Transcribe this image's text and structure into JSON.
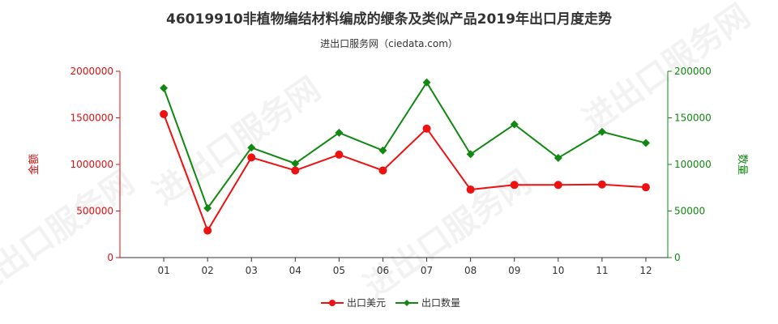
{
  "chart_data": {
    "type": "line",
    "title": "46019910非植物编结材料编成的缏条及类似产品2019年出口月度走势",
    "subtitle": "进出口服务网（ciedata.com）",
    "watermark": "进出口服务网",
    "categories": [
      "01",
      "02",
      "03",
      "04",
      "05",
      "06",
      "07",
      "08",
      "09",
      "10",
      "11",
      "12"
    ],
    "y_left": {
      "label": "金额",
      "range": [
        0,
        2000000
      ],
      "ticks": [
        0,
        500000,
        1000000,
        1500000,
        2000000
      ],
      "tick_labels": [
        "0",
        "500000",
        "1000000",
        "1500000",
        "2000000"
      ],
      "color": "#dd1111"
    },
    "y_right": {
      "label": "数量",
      "range": [
        0,
        200000
      ],
      "ticks": [
        0,
        50000,
        100000,
        150000,
        200000
      ],
      "tick_labels": [
        "0",
        "50000",
        "100000",
        "150000",
        "200000"
      ],
      "color": "#118811"
    },
    "series": [
      {
        "name": "出口美元",
        "axis": "left",
        "color": "#ee1111",
        "marker": "circle",
        "values": [
          1540000,
          290000,
          1075000,
          935000,
          1105000,
          935000,
          1385000,
          730000,
          780000,
          780000,
          785000,
          755000
        ]
      },
      {
        "name": "出口数量",
        "axis": "right",
        "color": "#118811",
        "marker": "diamond",
        "values": [
          182000,
          53000,
          118000,
          101000,
          134000,
          115000,
          188000,
          111000,
          143000,
          107000,
          135000,
          123000
        ]
      }
    ],
    "legend_position": "bottom-center",
    "grid": false
  }
}
